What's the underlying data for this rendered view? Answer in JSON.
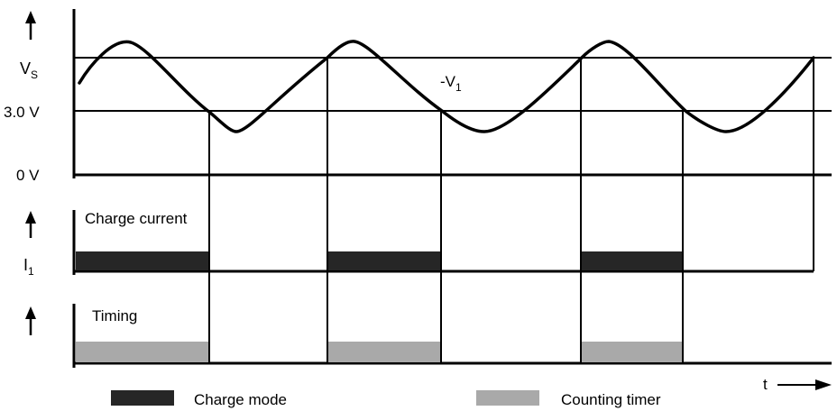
{
  "voltage_panel": {
    "vs_label": "V",
    "vs_sub": "S",
    "v1_label": "-V",
    "v1_sub": "1",
    "ref_label": "3.0 V",
    "zero_label": "0 V"
  },
  "current_panel": {
    "title": "Charge current",
    "i_label": "I",
    "i_sub": "1"
  },
  "timing_panel": {
    "title": "Timing"
  },
  "time_axis_label": "t",
  "legend": {
    "charge_mode": "Charge mode",
    "counting_timer": "Counting timer"
  },
  "colors": {
    "charge_fill": "#262626",
    "timer_fill": "#a9a9a9",
    "line": "#000000"
  }
}
